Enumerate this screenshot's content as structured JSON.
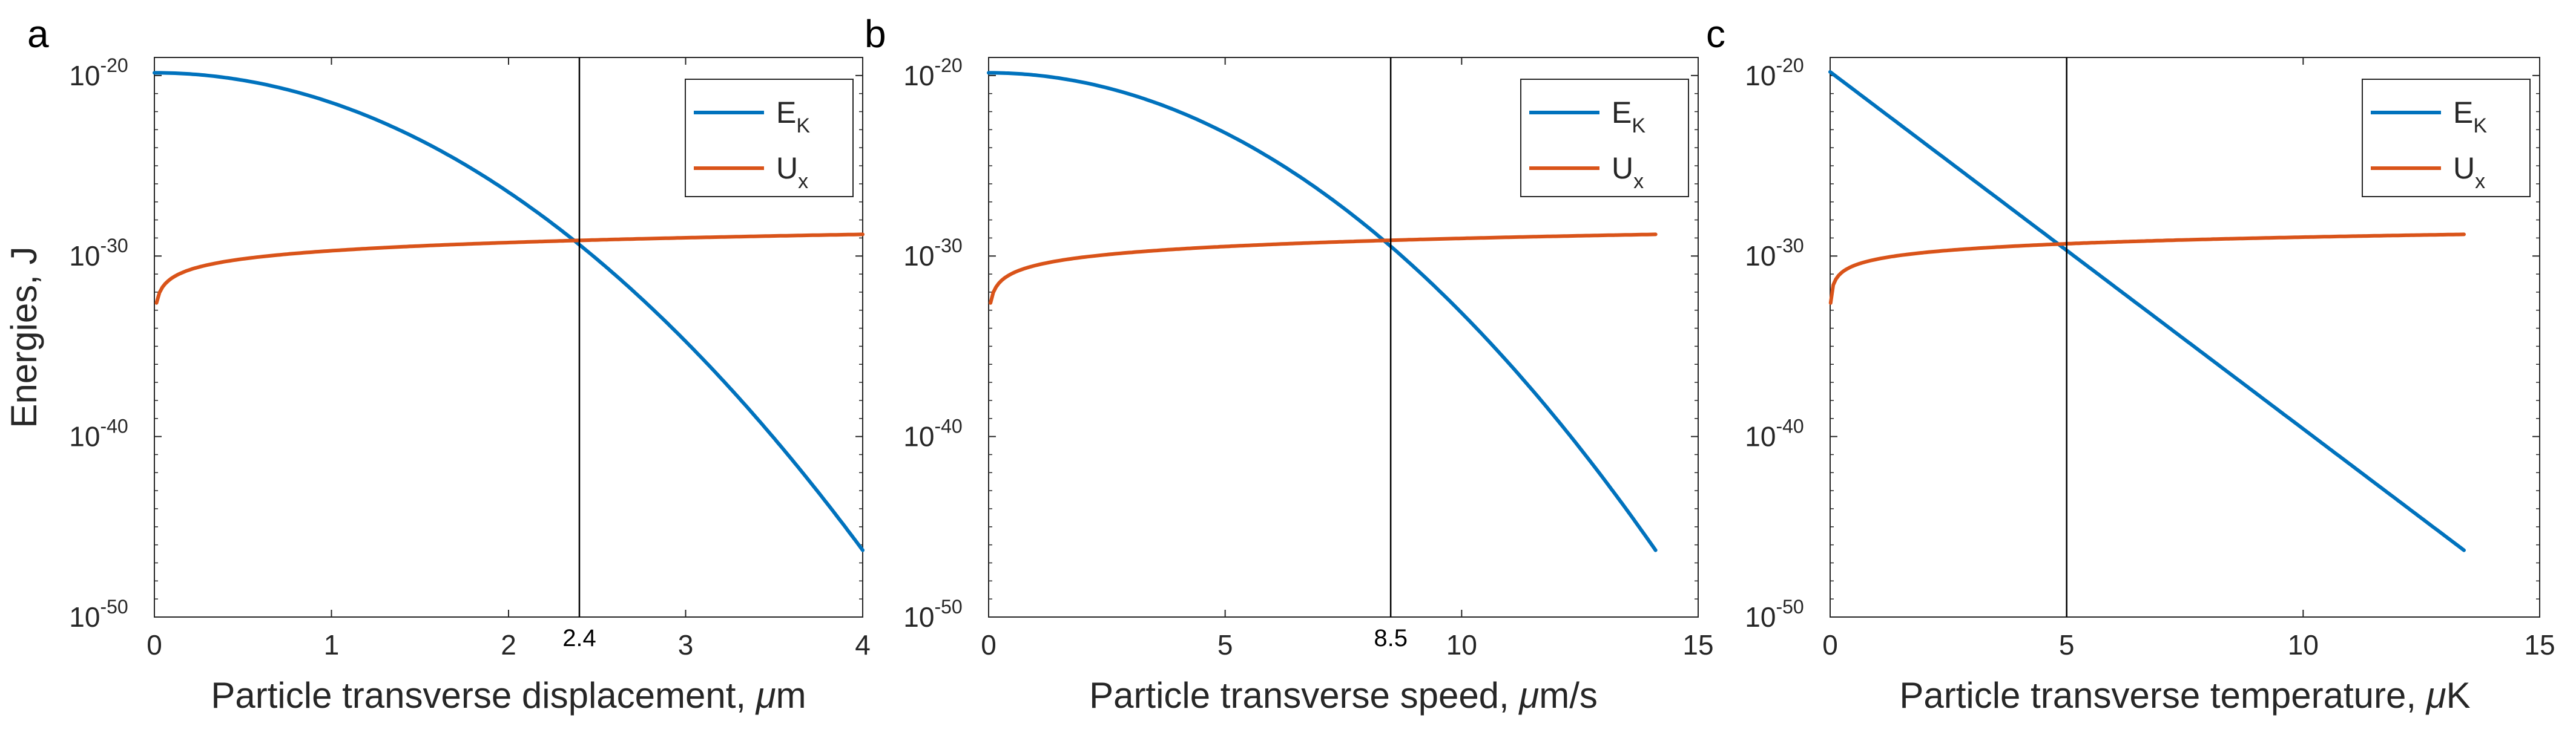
{
  "chart_data": [
    {
      "panel_label": "a",
      "type": "line",
      "xlabel": "Particle transverse displacement, ",
      "xunit_greek": "μ",
      "xunit": "m",
      "ylabel": "Energies, J",
      "yscale": "log",
      "ylim_exp": [
        -50,
        -19
      ],
      "yticks_exp": [
        -20,
        -30,
        -40,
        -50
      ],
      "xlim": [
        0,
        4
      ],
      "xticks": [
        0,
        1,
        2,
        3,
        4
      ],
      "marker": {
        "x": 2.4,
        "label": "2.4"
      },
      "legend": {
        "location": "top-right",
        "entries": [
          {
            "base": "E",
            "sub": "K",
            "color": "#0072BD"
          },
          {
            "base": "U",
            "sub": "x",
            "color": "#D95319"
          }
        ]
      },
      "series": [
        {
          "name": "E_K",
          "color": "#0072BD",
          "form": "parabola",
          "x_range": [
            0,
            4
          ],
          "log10_y_start": -19.85,
          "log10_y_end": -46.3
        },
        {
          "name": "U_x",
          "color": "#D95319",
          "form": "log",
          "x_range": [
            0.012,
            4
          ],
          "log10_y_start": -32.6,
          "log10_y_end": -28.8
        }
      ]
    },
    {
      "panel_label": "b",
      "type": "line",
      "xlabel": "Particle transverse speed, ",
      "xunit_greek": "μ",
      "xunit": "m/s",
      "ylabel": "",
      "yscale": "log",
      "ylim_exp": [
        -50,
        -19
      ],
      "yticks_exp": [
        -20,
        -30,
        -40,
        -50
      ],
      "xlim": [
        0,
        15
      ],
      "xticks": [
        0,
        5,
        10,
        15
      ],
      "marker": {
        "x": 8.5,
        "label": "8.5"
      },
      "legend": {
        "location": "top-right",
        "entries": [
          {
            "base": "E",
            "sub": "K",
            "color": "#0072BD"
          },
          {
            "base": "U",
            "sub": "x",
            "color": "#D95319"
          }
        ]
      },
      "series": [
        {
          "name": "E_K",
          "color": "#0072BD",
          "form": "parabola",
          "x_range": [
            0,
            14.1
          ],
          "log10_y_start": -19.85,
          "log10_y_end": -46.3
        },
        {
          "name": "U_x",
          "color": "#D95319",
          "form": "log",
          "x_range": [
            0.04,
            14.1
          ],
          "log10_y_start": -32.6,
          "log10_y_end": -28.8
        }
      ]
    },
    {
      "panel_label": "c",
      "type": "line",
      "xlabel": "Particle transverse temperature, ",
      "xunit_greek": "μ",
      "xunit": "K",
      "ylabel": "",
      "yscale": "log",
      "ylim_exp": [
        -50,
        -19
      ],
      "yticks_exp": [
        -20,
        -30,
        -40,
        -50
      ],
      "xlim": [
        0,
        15
      ],
      "xticks": [
        0,
        5,
        10,
        15
      ],
      "marker": {
        "x": 5,
        "label": ""
      },
      "legend": {
        "location": "top-right",
        "entries": [
          {
            "base": "E",
            "sub": "K",
            "color": "#0072BD"
          },
          {
            "base": "U",
            "sub": "x",
            "color": "#D95319"
          }
        ]
      },
      "series": [
        {
          "name": "E_K",
          "color": "#0072BD",
          "form": "linear",
          "x_range": [
            0,
            13.4
          ],
          "log10_y_start": -19.8,
          "log10_y_end": -46.3
        },
        {
          "name": "U_x",
          "color": "#D95319",
          "form": "log",
          "x_range": [
            0.01,
            13.4
          ],
          "log10_y_start": -32.6,
          "log10_y_end": -28.8
        }
      ]
    }
  ]
}
